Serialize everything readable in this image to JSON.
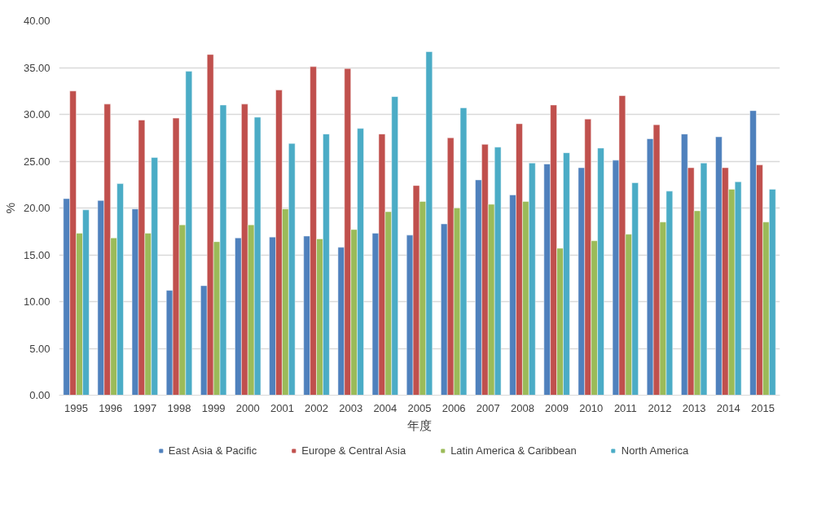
{
  "chart_data": {
    "type": "bar",
    "xlabel": "年度",
    "ylabel": "%",
    "categories": [
      "1995",
      "1996",
      "1997",
      "1998",
      "1999",
      "2000",
      "2001",
      "2002",
      "2003",
      "2004",
      "2005",
      "2006",
      "2007",
      "2008",
      "2009",
      "2010",
      "2011",
      "2012",
      "2013",
      "2014",
      "2015"
    ],
    "series": [
      {
        "name": "East Asia & Pacific",
        "color": "#4f81bd",
        "values": [
          21.0,
          20.8,
          19.9,
          11.2,
          11.7,
          16.8,
          16.9,
          17.0,
          15.8,
          17.3,
          17.1,
          18.3,
          23.0,
          21.4,
          24.7,
          24.3,
          25.1,
          27.4,
          27.9,
          27.6,
          30.4
        ]
      },
      {
        "name": "Europe & Central Asia",
        "color": "#c0504d",
        "values": [
          32.5,
          31.1,
          29.4,
          29.6,
          36.4,
          31.1,
          32.6,
          35.1,
          34.9,
          27.9,
          22.4,
          27.5,
          26.8,
          29.0,
          31.0,
          29.5,
          32.0,
          28.9,
          24.3,
          24.3,
          24.6
        ]
      },
      {
        "name": "Latin America & Caribbean",
        "color": "#9bbb59",
        "values": [
          17.3,
          16.8,
          17.3,
          18.2,
          16.4,
          18.2,
          19.9,
          16.7,
          17.7,
          19.6,
          20.7,
          20.0,
          20.4,
          20.7,
          15.7,
          16.5,
          17.2,
          18.5,
          19.7,
          22.0,
          18.5
        ]
      },
      {
        "name": "North America",
        "color": "#4bacc6",
        "values": [
          19.8,
          22.6,
          25.4,
          34.6,
          31.0,
          29.7,
          26.9,
          27.9,
          28.5,
          31.9,
          36.7,
          30.7,
          26.5,
          24.8,
          25.9,
          26.4,
          22.7,
          21.8,
          24.8,
          22.8,
          22.0
        ]
      }
    ],
    "ylim": [
      0,
      40
    ],
    "yticks": [
      {
        "value": 0,
        "label": "0.00"
      },
      {
        "value": 5,
        "label": "5.00"
      },
      {
        "value": 10,
        "label": "10.00"
      },
      {
        "value": 15,
        "label": "15.00"
      },
      {
        "value": 20,
        "label": "20.00"
      },
      {
        "value": 25,
        "label": "25.00"
      },
      {
        "value": 30,
        "label": "30.00"
      },
      {
        "value": 35,
        "label": "35.00"
      },
      {
        "value": 40,
        "label": "40.00"
      }
    ],
    "grid": "y",
    "legend": "bottom"
  }
}
